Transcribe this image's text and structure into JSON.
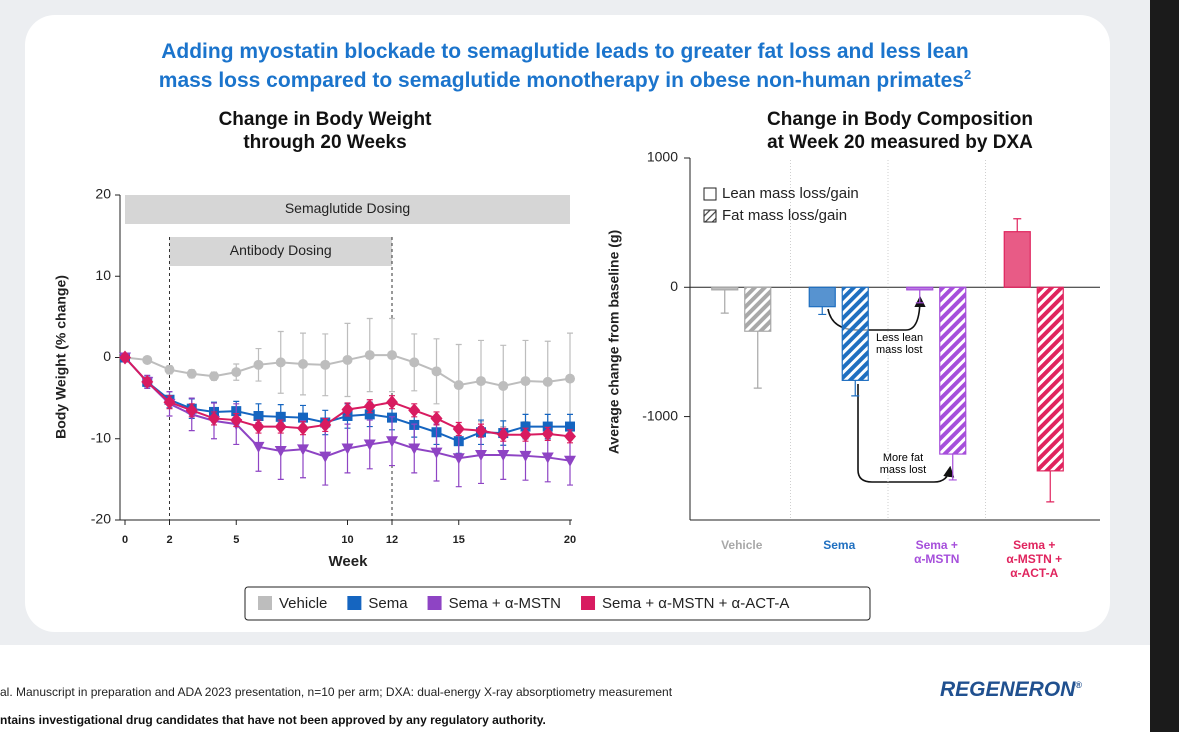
{
  "header": {
    "title": "Adding myostatin blockade to semaglutide leads to greater fat loss and less lean\nmass loss compared to semaglutide monotherapy in obese non-human primates",
    "title_ref": "2"
  },
  "chart_data": [
    {
      "type": "line",
      "title": "Change in Body Weight\nthrough 20 Weeks",
      "x_label": "Week",
      "y_label": "Body Weight (% change)",
      "x": [
        0,
        1,
        2,
        3,
        4,
        5,
        6,
        7,
        8,
        9,
        10,
        11,
        12,
        13,
        14,
        15,
        16,
        17,
        18,
        19,
        20
      ],
      "xlim": [
        0,
        20
      ],
      "xticks": [
        0,
        2,
        5,
        10,
        12,
        15,
        20
      ],
      "ylim": [
        -20,
        20
      ],
      "yticks": [
        -20,
        -10,
        0,
        10,
        20
      ],
      "spans": [
        {
          "label": "Semaglutide Dosing",
          "start": 0,
          "end": 20
        },
        {
          "label": "Antibody Dosing",
          "start": 2,
          "end": 12
        }
      ],
      "series": [
        {
          "name": "Vehicle",
          "color": "#bdbdbd",
          "marker": "circle",
          "values": [
            0,
            -0.3,
            -1.5,
            -2,
            -2.3,
            -1.8,
            -0.9,
            -0.6,
            -0.8,
            -0.9,
            -0.3,
            0.3,
            0.3,
            -0.6,
            -1.7,
            -3.4,
            -2.9,
            -3.5,
            -2.9,
            -3,
            -2.6
          ],
          "errors": [
            0,
            0.3,
            0.5,
            0.5,
            0.5,
            1,
            2,
            3.8,
            3.8,
            3.8,
            4.5,
            4.5,
            4.5,
            3.5,
            4,
            5,
            5,
            5,
            5,
            5,
            5.6
          ]
        },
        {
          "name": "Sema",
          "color": "#1565c0",
          "marker": "square",
          "values": [
            0,
            -3,
            -5.2,
            -6.3,
            -6.7,
            -6.6,
            -7.2,
            -7.3,
            -7.4,
            -8,
            -7.2,
            -7,
            -7.4,
            -8.3,
            -9.2,
            -10.3,
            -9.2,
            -9.3,
            -8.5,
            -8.5,
            -8.5
          ],
          "errors": [
            0,
            0.6,
            1,
            1.2,
            1.2,
            1.2,
            1.5,
            1.5,
            1.5,
            1.5,
            1.5,
            1.5,
            1.5,
            1.5,
            1.5,
            1.5,
            1.5,
            1.5,
            1.5,
            1.5,
            1.5
          ]
        },
        {
          "name": "Sema + α-MSTN",
          "color": "#8e44c4",
          "marker": "triangle",
          "values": [
            0,
            -3,
            -5.7,
            -7,
            -7.8,
            -8.2,
            -11,
            -11.5,
            -11.3,
            -12.2,
            -11.2,
            -10.7,
            -10.3,
            -11.2,
            -11.7,
            -12.4,
            -12,
            -12,
            -12.1,
            -12.3,
            -12.7
          ],
          "errors": [
            0,
            0.8,
            1.5,
            2,
            2.2,
            2.5,
            3,
            3.5,
            3.5,
            3.5,
            3,
            3,
            3,
            3,
            3.5,
            3.5,
            3.5,
            3,
            3,
            3,
            3
          ]
        },
        {
          "name": "Sema + α-MSTN + α-ACT-A",
          "color": "#d81b60",
          "marker": "diamond",
          "values": [
            0,
            -3,
            -5.5,
            -6.5,
            -7.5,
            -7.7,
            -8.5,
            -8.5,
            -8.7,
            -8.3,
            -6.4,
            -6,
            -5.5,
            -6.5,
            -7.5,
            -8.8,
            -9,
            -9.5,
            -9.5,
            -9.4,
            -9.7
          ],
          "errors": [
            0,
            0.5,
            0.8,
            0.8,
            0.8,
            0.8,
            0.8,
            0.8,
            0.8,
            0.8,
            0.8,
            0.8,
            0.8,
            0.8,
            0.8,
            0.8,
            0.8,
            0.8,
            0.8,
            0.8,
            0.8
          ]
        }
      ]
    },
    {
      "type": "bar",
      "title": "Change in Body Composition\nat Week 20 measured by DXA",
      "y_label": "Average change from baseline (g)",
      "categories": [
        "Vehicle",
        "Sema",
        "Sema +\nα-MSTN",
        "Sema +\nα-MSTN +\nα-ACT-A"
      ],
      "category_colors": [
        "#a8a8a8",
        "#1f6fc0",
        "#a64fdb",
        "#e0245e"
      ],
      "ylim": [
        -1800,
        1000
      ],
      "yticks": [
        -1000,
        0,
        1000
      ],
      "series": [
        {
          "name": "Lean mass loss/gain",
          "pattern": "solid",
          "values": [
            -20,
            -150,
            -20,
            430
          ],
          "errors": [
            180,
            60,
            100,
            100
          ]
        },
        {
          "name": "Fat mass loss/gain",
          "pattern": "hatched",
          "values": [
            -340,
            -720,
            -1290,
            -1420
          ],
          "errors": [
            440,
            120,
            200,
            240
          ]
        }
      ],
      "annotations": [
        {
          "text": "Less lean\nmass lost"
        },
        {
          "text": "More fat\nmass lost"
        }
      ]
    }
  ],
  "footer": {
    "note": "al. Manuscript in preparation and ADA 2023 presentation, n=10 per arm; DXA: dual-energy X-ray absorptiometry measurement",
    "disclaimer": "ntains investigational drug candidates that have not been approved by any regulatory authority.",
    "logo": "REGENERON",
    "logo_mark": "®"
  }
}
